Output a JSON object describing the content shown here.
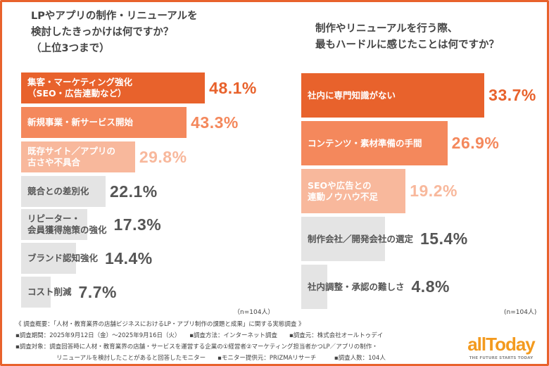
{
  "chart_data": [
    {
      "type": "bar",
      "orientation": "horizontal",
      "title": "LPやアプリの制作・リニューアルを\n検討したきっかけは何ですか？\n（上位3つまで）",
      "categories": [
        "集客・マーケティング強化\n（SEO・広告連動など）",
        "新規事業・新サービス開始",
        "既存サイト／アプリの\n古さや不具合",
        "競合との差別化",
        "リピーター・\n会員獲得施策の強化",
        "ブランド認知強化",
        "コスト削減"
      ],
      "values": [
        48.1,
        43.3,
        29.8,
        22.1,
        17.3,
        14.4,
        7.7
      ],
      "value_labels": [
        "48.1%",
        "43.3%",
        "29.8%",
        "22.1%",
        "17.3%",
        "14.4%",
        "7.7%"
      ],
      "note": "（n=104人）"
    },
    {
      "type": "bar",
      "orientation": "horizontal",
      "title": "制作やリニューアルを行う際、\n最もハードルに感じたことは何ですか？",
      "categories": [
        "社内に専門知識がない",
        "コンテンツ・素材準備の手間",
        "SEOや広告との\n連動ノウハウ不足",
        "制作会社／開発会社の選定",
        "社内調整・承認の難しさ"
      ],
      "values": [
        33.7,
        26.9,
        19.2,
        15.4,
        4.8
      ],
      "value_labels": [
        "33.7%",
        "26.9%",
        "19.2%",
        "15.4%",
        "4.8%"
      ],
      "note": "(n=104人)"
    }
  ],
  "colors": {
    "rank1": "#e8622c",
    "rank2": "#f4885c",
    "rank3": "#f8b89c",
    "other": "#e4e4e4",
    "frame": "#e8622c",
    "logo": "#f39a1e"
  },
  "footer": {
    "line1": "《 調査概要：「人材・教育業界の店舗ビジネスにおけるLP・アプリ制作の課題と成果」に関する実態調査 》",
    "line2": "▪調査期間：2025年9月12日（金）～2025年9月16日（火）　　▪調査方法：インターネット調査　　▪調査元：株式会社オールトゥデイ",
    "line3": "▪調査対象：調査回答時に人材・教育業界の店舗・サービスを運営する企業の①経営者②マーケティング担当者かつLP／アプリの制作・",
    "line4": "リニューアルを検討したことがあると回答したモニター　　▪モニター提供元：PRIZMAリサーチ　　　▪調査人数：104人"
  },
  "logo": {
    "wordmark": "allToday",
    "tagline": "THE FUTURE STARTS TODAY"
  }
}
